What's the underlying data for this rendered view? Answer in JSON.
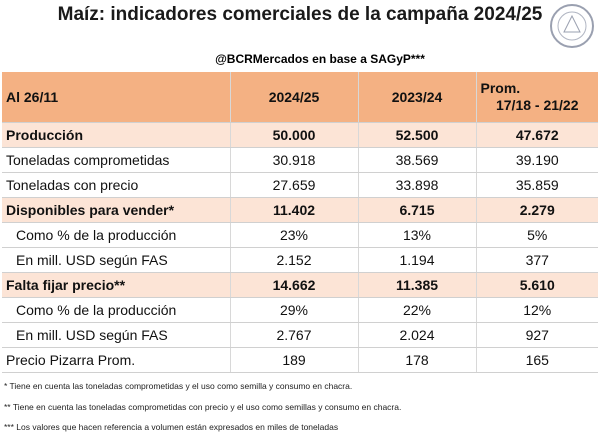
{
  "header": {
    "title": "Maíz: indicadores comerciales de la campaña 2024/25",
    "source": "@BCRMercados en base a SAGyP***"
  },
  "table": {
    "columns": [
      "Al 26/11",
      "2024/25",
      "2023/24"
    ],
    "prom_column": [
      "Prom.",
      "17/18 - 21/22"
    ],
    "rows": [
      [
        "Producción",
        "50.000",
        "52.500",
        "47.672"
      ],
      [
        "Toneladas comprometidas",
        "30.918",
        "38.569",
        "39.190"
      ],
      [
        "Toneladas con precio",
        "27.659",
        "33.898",
        "35.859"
      ],
      [
        "Disponibles para vender*",
        "11.402",
        "6.715",
        "2.279"
      ],
      [
        "Como % de la producción",
        "23%",
        "13%",
        "5%"
      ],
      [
        "En mill. USD según FAS",
        "2.152",
        "1.194",
        "377"
      ],
      [
        "Falta fijar precio**",
        "14.662",
        "11.385",
        "5.610"
      ],
      [
        "Como % de la producción",
        "29%",
        "22%",
        "12%"
      ],
      [
        "En mill. USD según FAS",
        "2.767",
        "2.024",
        "927"
      ],
      [
        "Precio Pizarra Prom.",
        "189",
        "178",
        "165"
      ]
    ]
  },
  "footnotes": [
    "* Tiene en cuenta las toneladas comprometidas y el uso como semilla y consumo en chacra.",
    "** Tiene en cuenta las toneladas comprometidas con precio y el uso como semillas y consumo en chacra.",
    "*** Los valores que hacen referencia a volumen están expresados en miles de toneladas"
  ]
}
